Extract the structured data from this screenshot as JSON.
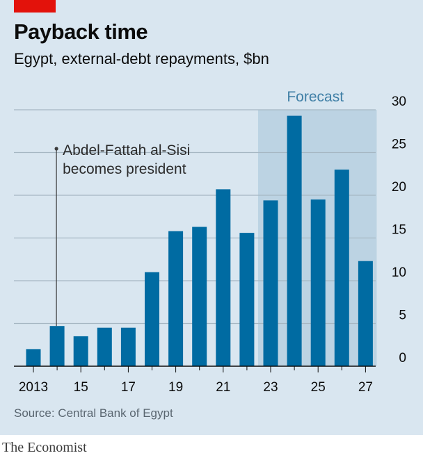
{
  "header": {
    "title": "Payback time",
    "subtitle": "Egypt, external-debt repayments, $bn"
  },
  "footer": {
    "source": "Source: Central Bank of Egypt",
    "brand": "The Economist"
  },
  "colors": {
    "bar": "#006ba2",
    "forecast_shade": "#bcd3e3",
    "background": "#d9e6f0",
    "brand_red": "#e3120b"
  },
  "chart_data": {
    "type": "bar",
    "categories": [
      "2013",
      "2014",
      "2015",
      "2016",
      "2017",
      "2018",
      "2019",
      "2020",
      "2021",
      "2022",
      "2023",
      "2024",
      "2025",
      "2026",
      "2027"
    ],
    "values": [
      2,
      4.7,
      3.5,
      4.5,
      4.5,
      11,
      15.8,
      16.3,
      20.7,
      15.6,
      19.4,
      29.3,
      19.5,
      23,
      12.3
    ],
    "x_tick_labels": [
      "2013",
      "15",
      "17",
      "19",
      "21",
      "23",
      "25",
      "27"
    ],
    "x_tick_categories": [
      "2013",
      "2015",
      "2017",
      "2019",
      "2021",
      "2023",
      "2025",
      "2027"
    ],
    "y_ticks": [
      0,
      5,
      10,
      15,
      20,
      25,
      30
    ],
    "ylim": [
      0,
      30
    ],
    "y_axis_position": "right",
    "grid": true,
    "forecast": {
      "label": "Forecast",
      "from": "2023",
      "to": "2027"
    },
    "annotation": {
      "lines": [
        "Abdel-Fattah al-Sisi",
        "becomes president"
      ],
      "category": "2014"
    }
  }
}
